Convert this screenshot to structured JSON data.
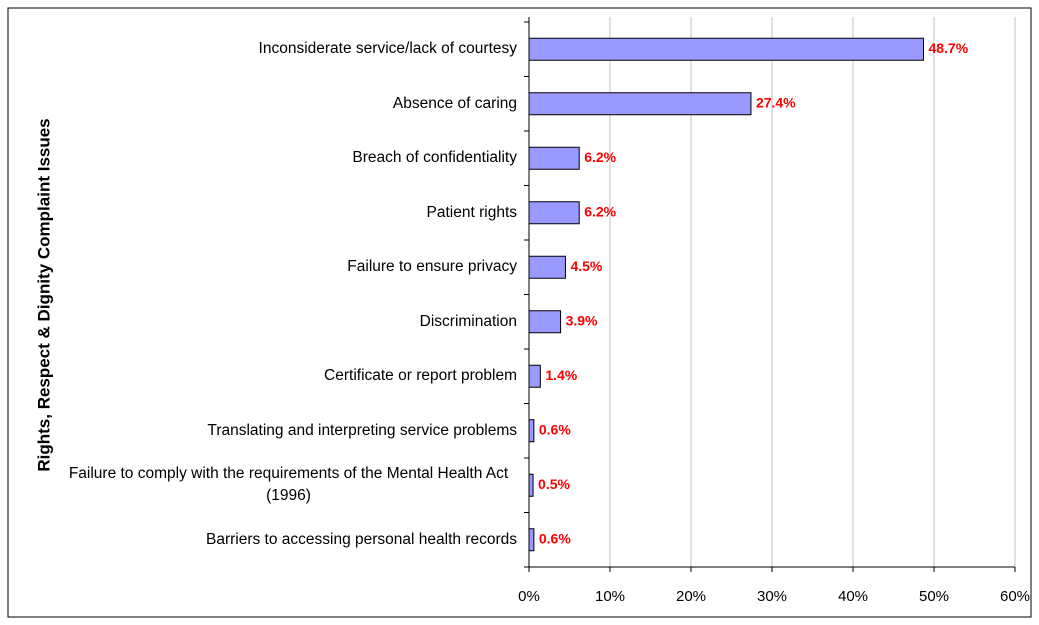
{
  "chart_data": {
    "type": "bar",
    "orientation": "horizontal",
    "y_label": "Rights, Respect & Dignity Complaint Issues",
    "categories": [
      "Inconsiderate service/lack of courtesy",
      "Absence of caring",
      "Breach of confidentiality",
      "Patient rights",
      "Failure to ensure privacy",
      "Discrimination",
      "Certificate or report problem",
      "Translating and interpreting service problems",
      "Failure to comply with the requirements of the Mental Health Act (1996)",
      "Barriers to accessing personal health records"
    ],
    "values": [
      48.7,
      27.4,
      6.2,
      6.2,
      4.5,
      3.9,
      1.4,
      0.6,
      0.5,
      0.6
    ],
    "value_labels": [
      "48.7%",
      "27.4%",
      "6.2%",
      "6.2%",
      "4.5%",
      "3.9%",
      "1.4%",
      "0.6%",
      "0.5%",
      "0.6%"
    ],
    "color": "#9999ff",
    "value_label_color": "#ff0000",
    "xlim": [
      0,
      60
    ],
    "xticks": [
      {
        "value": 0,
        "label": "0%"
      },
      {
        "value": 10,
        "label": "10%"
      },
      {
        "value": 20,
        "label": "20%"
      },
      {
        "value": 30,
        "label": "30%"
      },
      {
        "value": 40,
        "label": "40%"
      },
      {
        "value": 50,
        "label": "50%"
      },
      {
        "value": 60,
        "label": "60%"
      }
    ],
    "grid": true
  }
}
